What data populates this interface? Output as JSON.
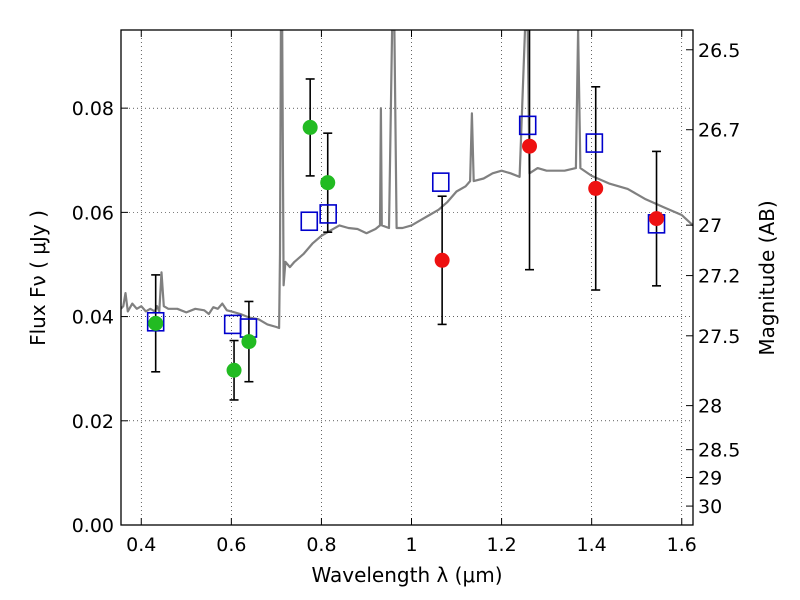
{
  "chart_data": {
    "type": "scatter",
    "xlabel": "Wavelength  λ (μm)",
    "ylabel": "Flux  Fν  ( μJy )",
    "y2label": "Magnitude (AB)",
    "xlim": [
      0.355,
      1.625
    ],
    "ylim": [
      0.0,
      0.095
    ],
    "grid": true,
    "x_ticks": [
      {
        "value": 0.4,
        "label": "0.4"
      },
      {
        "value": 0.6,
        "label": "0.6"
      },
      {
        "value": 0.8,
        "label": "0.8"
      },
      {
        "value": 1.0,
        "label": "1"
      },
      {
        "value": 1.2,
        "label": "1.2"
      },
      {
        "value": 1.4,
        "label": "1.4"
      },
      {
        "value": 1.6,
        "label": "1.6"
      }
    ],
    "y_ticks": [
      {
        "value": 0.0,
        "label": "0.00"
      },
      {
        "value": 0.02,
        "label": "0.02"
      },
      {
        "value": 0.04,
        "label": "0.04"
      },
      {
        "value": 0.06,
        "label": "0.06"
      },
      {
        "value": 0.08,
        "label": "0.08"
      }
    ],
    "magnitude_ticks": [
      {
        "value": 26.5,
        "label": "26.5"
      },
      {
        "value": 26.7,
        "label": "26.7"
      },
      {
        "value": 27,
        "label": "27"
      },
      {
        "value": 27.2,
        "label": "27.2"
      },
      {
        "value": 27.5,
        "label": "27.5"
      },
      {
        "value": 28,
        "label": "28"
      },
      {
        "value": 28.5,
        "label": "28.5"
      },
      {
        "value": 29,
        "label": "29"
      },
      {
        "value": 30,
        "label": "30"
      }
    ],
    "colors": {
      "sed": "#808080",
      "green": "#22bb22",
      "red": "#ee1111",
      "model": "#0000cc",
      "grid": "#000000",
      "errorbar": "#000000"
    },
    "series": [
      {
        "name": "model template (SED)",
        "style": "line",
        "points": [
          [
            0.355,
            0.0415
          ],
          [
            0.36,
            0.042
          ],
          [
            0.365,
            0.0445
          ],
          [
            0.37,
            0.041
          ],
          [
            0.38,
            0.0425
          ],
          [
            0.39,
            0.0415
          ],
          [
            0.4,
            0.042
          ],
          [
            0.41,
            0.041
          ],
          [
            0.42,
            0.0415
          ],
          [
            0.43,
            0.041
          ],
          [
            0.435,
            0.042
          ],
          [
            0.44,
            0.041
          ],
          [
            0.445,
            0.0485
          ],
          [
            0.45,
            0.042
          ],
          [
            0.46,
            0.0415
          ],
          [
            0.48,
            0.0415
          ],
          [
            0.5,
            0.0408
          ],
          [
            0.52,
            0.0415
          ],
          [
            0.54,
            0.0412
          ],
          [
            0.55,
            0.0405
          ],
          [
            0.56,
            0.0418
          ],
          [
            0.57,
            0.0415
          ],
          [
            0.58,
            0.0425
          ],
          [
            0.59,
            0.0412
          ],
          [
            0.6,
            0.041
          ],
          [
            0.62,
            0.0405
          ],
          [
            0.64,
            0.0398
          ],
          [
            0.66,
            0.0395
          ],
          [
            0.68,
            0.0385
          ],
          [
            0.7,
            0.038
          ],
          [
            0.706,
            0.0378
          ],
          [
            0.708,
            0.052
          ],
          [
            0.71,
            0.095
          ],
          [
            0.713,
            0.095
          ],
          [
            0.716,
            0.046
          ],
          [
            0.72,
            0.0505
          ],
          [
            0.73,
            0.0495
          ],
          [
            0.74,
            0.0505
          ],
          [
            0.76,
            0.052
          ],
          [
            0.78,
            0.054
          ],
          [
            0.8,
            0.0555
          ],
          [
            0.82,
            0.0565
          ],
          [
            0.84,
            0.0575
          ],
          [
            0.86,
            0.057
          ],
          [
            0.88,
            0.0568
          ],
          [
            0.9,
            0.056
          ],
          [
            0.92,
            0.0568
          ],
          [
            0.93,
            0.0575
          ],
          [
            0.932,
            0.08
          ],
          [
            0.934,
            0.0575
          ],
          [
            0.95,
            0.057
          ],
          [
            0.957,
            0.095
          ],
          [
            0.962,
            0.095
          ],
          [
            0.967,
            0.057
          ],
          [
            0.98,
            0.057
          ],
          [
            1.0,
            0.0575
          ],
          [
            1.02,
            0.0585
          ],
          [
            1.04,
            0.0595
          ],
          [
            1.06,
            0.0605
          ],
          [
            1.08,
            0.062
          ],
          [
            1.1,
            0.064
          ],
          [
            1.12,
            0.065
          ],
          [
            1.13,
            0.066
          ],
          [
            1.134,
            0.079
          ],
          [
            1.138,
            0.066
          ],
          [
            1.16,
            0.0665
          ],
          [
            1.18,
            0.0675
          ],
          [
            1.2,
            0.068
          ],
          [
            1.22,
            0.0675
          ],
          [
            1.24,
            0.0668
          ],
          [
            1.252,
            0.095
          ],
          [
            1.258,
            0.095
          ],
          [
            1.262,
            0.0675
          ],
          [
            1.28,
            0.0685
          ],
          [
            1.3,
            0.068
          ],
          [
            1.34,
            0.068
          ],
          [
            1.365,
            0.0685
          ],
          [
            1.37,
            0.095
          ],
          [
            1.375,
            0.0685
          ],
          [
            1.4,
            0.067
          ],
          [
            1.44,
            0.0655
          ],
          [
            1.48,
            0.0645
          ],
          [
            1.52,
            0.0625
          ],
          [
            1.56,
            0.061
          ],
          [
            1.6,
            0.0595
          ],
          [
            1.625,
            0.0575
          ]
        ]
      },
      {
        "name": "green photometry",
        "style": "circle",
        "points": [
          {
            "x": 0.432,
            "y": 0.0387,
            "err": 0.0093
          },
          {
            "x": 0.606,
            "y": 0.0297,
            "err": 0.0057
          },
          {
            "x": 0.639,
            "y": 0.0352,
            "err": 0.0077
          },
          {
            "x": 0.775,
            "y": 0.0763,
            "err": 0.0093
          },
          {
            "x": 0.814,
            "y": 0.0657,
            "err": 0.0095
          }
        ]
      },
      {
        "name": "red photometry",
        "style": "circle",
        "points": [
          {
            "x": 1.068,
            "y": 0.0508,
            "err": 0.0123
          },
          {
            "x": 1.262,
            "y": 0.0727,
            "err": 0.0237
          },
          {
            "x": 1.409,
            "y": 0.0646,
            "err": 0.0195
          },
          {
            "x": 1.544,
            "y": 0.0588,
            "err": 0.0129
          }
        ]
      },
      {
        "name": "model fluxes",
        "style": "square",
        "points": [
          {
            "x": 0.432,
            "y": 0.039
          },
          {
            "x": 0.603,
            "y": 0.0385
          },
          {
            "x": 0.638,
            "y": 0.0378
          },
          {
            "x": 0.773,
            "y": 0.0583
          },
          {
            "x": 0.815,
            "y": 0.0597
          },
          {
            "x": 1.065,
            "y": 0.0658
          },
          {
            "x": 1.258,
            "y": 0.0767
          },
          {
            "x": 1.406,
            "y": 0.0733
          },
          {
            "x": 1.544,
            "y": 0.0578
          }
        ]
      }
    ]
  }
}
